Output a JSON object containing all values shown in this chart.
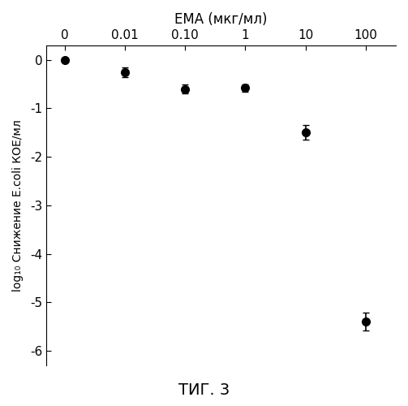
{
  "top_xlabel": "ЕМА (мкг/мл)",
  "ylabel": "log₁₀ Снижение E.coli КОЕ/мл",
  "figure_title": "ΤИГ. 3",
  "x_tick_labels": [
    "0",
    "0.01",
    "0.10",
    "1",
    "10",
    "100"
  ],
  "y_values": [
    0.0,
    -0.25,
    -0.6,
    -0.58,
    -1.5,
    -5.4
  ],
  "y_errors": [
    0.04,
    0.1,
    0.09,
    0.08,
    0.15,
    0.18
  ],
  "ylim": [
    -6.3,
    0.3
  ],
  "yticks": [
    0,
    -1,
    -2,
    -3,
    -4,
    -5,
    -6
  ],
  "ytick_labels": [
    "0",
    "-1",
    "-2",
    "-3",
    "-4",
    "-5",
    "-6"
  ],
  "line_color": "#000000",
  "marker_color": "#000000",
  "marker_size": 7,
  "line_width": 1.5,
  "capsize": 3,
  "elinewidth": 1.2,
  "background_color": "#ffffff",
  "tick_fontsize": 11,
  "xlabel_fontsize": 12,
  "ylabel_fontsize": 10,
  "title_fontsize": 14
}
